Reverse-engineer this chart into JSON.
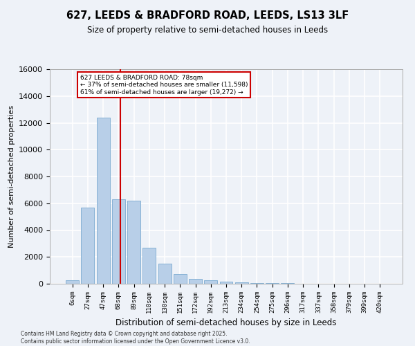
{
  "title_line1": "627, LEEDS & BRADFORD ROAD, LEEDS, LS13 3LF",
  "title_line2": "Size of property relative to semi-detached houses in Leeds",
  "xlabel": "Distribution of semi-detached houses by size in Leeds",
  "ylabel": "Number of semi-detached properties",
  "categories": [
    "6sqm",
    "27sqm",
    "47sqm",
    "68sqm",
    "89sqm",
    "110sqm",
    "130sqm",
    "151sqm",
    "172sqm",
    "192sqm",
    "213sqm",
    "234sqm",
    "254sqm",
    "275sqm",
    "296sqm",
    "317sqm",
    "337sqm",
    "358sqm",
    "379sqm",
    "399sqm",
    "420sqm"
  ],
  "values": [
    280,
    5700,
    12400,
    6300,
    6200,
    2700,
    1500,
    700,
    350,
    270,
    150,
    100,
    60,
    50,
    30,
    20,
    12,
    8,
    5,
    4,
    3
  ],
  "bar_color": "#b8cfe8",
  "bar_edge_color": "#7aaad0",
  "property_line_label": "627 LEEDS & BRADFORD ROAD: 78sqm",
  "annotation_smaller": "← 37% of semi-detached houses are smaller (11,598)",
  "annotation_larger": "61% of semi-detached houses are larger (19,272) →",
  "ylim": [
    0,
    16000
  ],
  "yticks": [
    0,
    2000,
    4000,
    6000,
    8000,
    10000,
    12000,
    14000,
    16000
  ],
  "annotation_box_color": "#ffffff",
  "annotation_box_edge": "#cc0000",
  "vline_color": "#cc0000",
  "vline_x_index": 3,
  "vline_x_offset": 0.1,
  "footer_line1": "Contains HM Land Registry data © Crown copyright and database right 2025.",
  "footer_line2": "Contains public sector information licensed under the Open Government Licence v3.0.",
  "background_color": "#eef2f8",
  "grid_color": "#ffffff"
}
